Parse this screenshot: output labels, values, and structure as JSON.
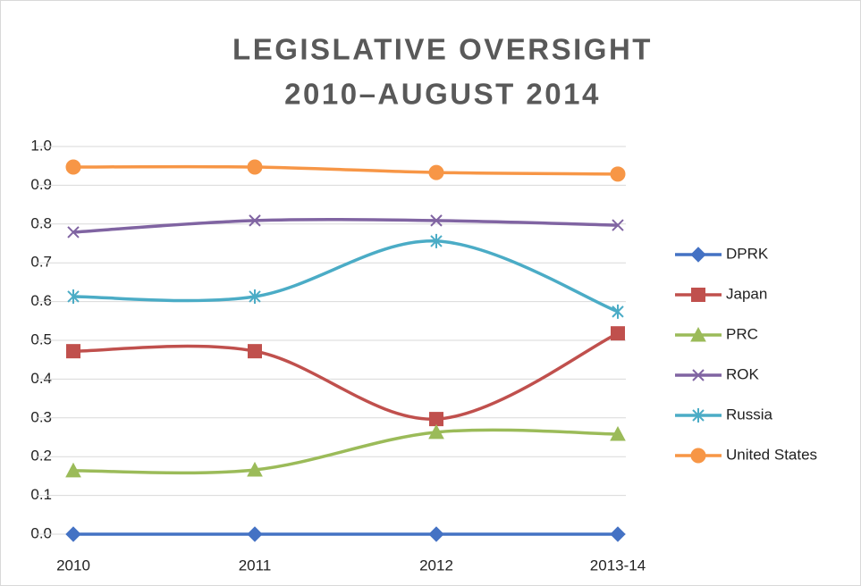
{
  "chart_data": {
    "type": "line",
    "smooth": true,
    "title": [
      "LEGISLATIVE OVERSIGHT",
      "2010–AUGUST 2014"
    ],
    "categories": [
      "2010",
      "2011",
      "2012",
      "2013-14"
    ],
    "series": [
      {
        "name": "DPRK",
        "color": "#4472c4",
        "marker": "diamond",
        "values": [
          0,
          0,
          0,
          0
        ]
      },
      {
        "name": "Japan",
        "color": "#c0504d",
        "marker": "square",
        "values": [
          0.472,
          0.472,
          0.297,
          0.518
        ]
      },
      {
        "name": "PRC",
        "color": "#9bbb59",
        "marker": "triangle",
        "values": [
          0.164,
          0.166,
          0.263,
          0.258
        ]
      },
      {
        "name": "ROK",
        "color": "#8064a2",
        "marker": "x",
        "values": [
          0.779,
          0.809,
          0.809,
          0.797
        ]
      },
      {
        "name": "Russia",
        "color": "#4bacc6",
        "marker": "star",
        "values": [
          0.613,
          0.613,
          0.756,
          0.574
        ]
      },
      {
        "name": "United States",
        "color": "#f79646",
        "marker": "circle",
        "values": [
          0.947,
          0.947,
          0.933,
          0.929
        ]
      }
    ],
    "ylim": [
      0,
      1
    ],
    "yticks": [
      {
        "value": 0,
        "label": "0.0"
      },
      0.1,
      0.2,
      0.3,
      0.4,
      0.5,
      0.6,
      0.7,
      0.8,
      0.9,
      {
        "value": 1,
        "label": "1.0"
      }
    ],
    "grid": true,
    "legend": "right"
  }
}
